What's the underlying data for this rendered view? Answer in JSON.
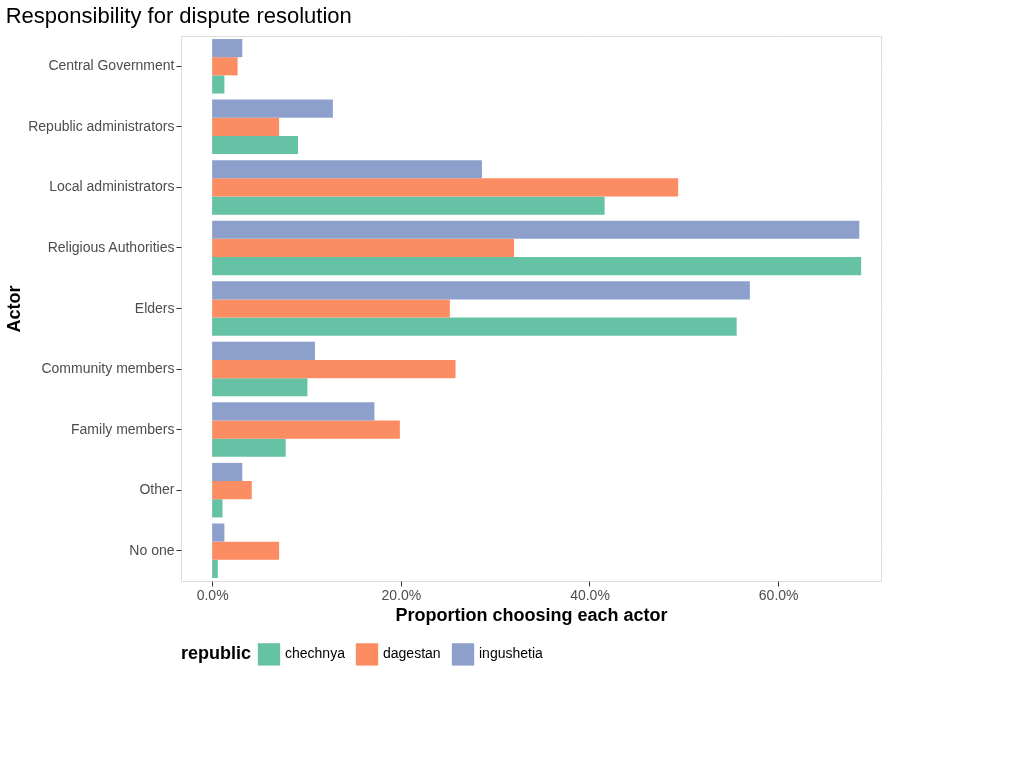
{
  "chart_data": {
    "type": "bar",
    "orientation": "horizontal",
    "title": "Responsibility for dispute resolution",
    "xlabel": "Proportion choosing each actor",
    "ylabel": "Actor",
    "legend_title": "republic",
    "legend": "bottom",
    "grid": true,
    "categories": [
      "Central Government",
      "Republic administrators",
      "Local administrators",
      "Religious Authorities",
      "Elders",
      "Community members",
      "Family members",
      "Other",
      "No one"
    ],
    "xlim": [
      -3.3,
      70.9
    ],
    "xticks": [
      {
        "value": 0,
        "label": "0.0%"
      },
      {
        "value": 20,
        "label": "20.0%"
      },
      {
        "value": 40,
        "label": "40.0%"
      },
      {
        "value": 60,
        "label": "60.0%"
      }
    ],
    "series": [
      {
        "name": "chechnya",
        "color": "#66c2a5",
        "values": [
          1.3,
          9.1,
          41.6,
          68.8,
          55.6,
          10.1,
          7.8,
          1.1,
          0.6
        ]
      },
      {
        "name": "dagestan",
        "color": "#fc8d62",
        "values": [
          2.7,
          7.1,
          49.4,
          32.0,
          25.2,
          25.8,
          19.9,
          4.2,
          7.1
        ]
      },
      {
        "name": "ingushetia",
        "color": "#8da0cb",
        "values": [
          3.2,
          12.8,
          28.6,
          68.6,
          57.0,
          10.9,
          17.2,
          3.2,
          1.3
        ]
      }
    ]
  }
}
